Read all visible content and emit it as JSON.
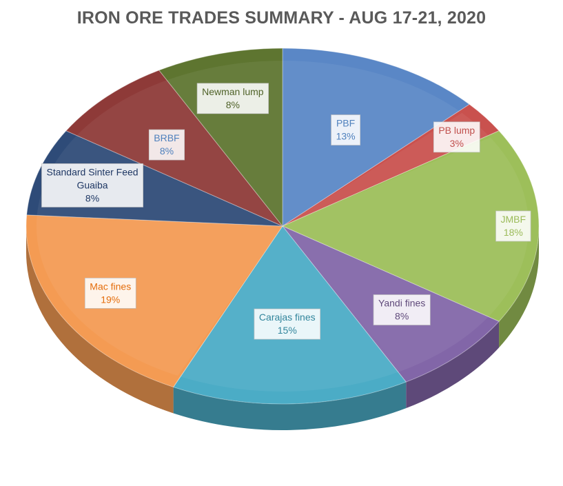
{
  "chart_data": {
    "type": "pie",
    "title": "IRON ORE TRADES SUMMARY - AUG 17-21, 2020",
    "categories": [
      "PBF",
      "PB lump",
      "JMBF",
      "Yandi fines",
      "Carajas fines",
      "Mac fines",
      "Standard Sinter Feed Guaiba",
      "BRBF",
      "Newman lump"
    ],
    "values": [
      13,
      3,
      18,
      8,
      15,
      19,
      8,
      8,
      8
    ],
    "labels": [
      {
        "lines": [
          "PBF",
          "13%"
        ]
      },
      {
        "lines": [
          "PB lump",
          "3%"
        ]
      },
      {
        "lines": [
          "JMBF",
          "18%"
        ]
      },
      {
        "lines": [
          "Yandi fines",
          "8%"
        ]
      },
      {
        "lines": [
          "Carajas fines",
          "15%"
        ]
      },
      {
        "lines": [
          "Mac fines",
          "19%"
        ]
      },
      {
        "lines": [
          "Standard Sinter Feed",
          "Guaiba",
          "8%"
        ]
      },
      {
        "lines": [
          "BRBF",
          "8%"
        ]
      },
      {
        "lines": [
          "Newman lump",
          "8%"
        ]
      }
    ],
    "colors": [
      "#5A87C6",
      "#C9514E",
      "#9DBF5A",
      "#8266A8",
      "#4BACC6",
      "#F49B53",
      "#2E4B78",
      "#8E3A38",
      "#5E7530"
    ],
    "label_colors": [
      "#4F81BD",
      "#C0504D",
      "#9BBB59",
      "#604A7B",
      "#31859C",
      "#E46C0A",
      "#1F3864",
      "#4F81BD",
      "#4F6228"
    ],
    "style": "3d-exploded-pie",
    "legend": "none",
    "start_angle_deg": 0,
    "direction": "clockwise"
  }
}
